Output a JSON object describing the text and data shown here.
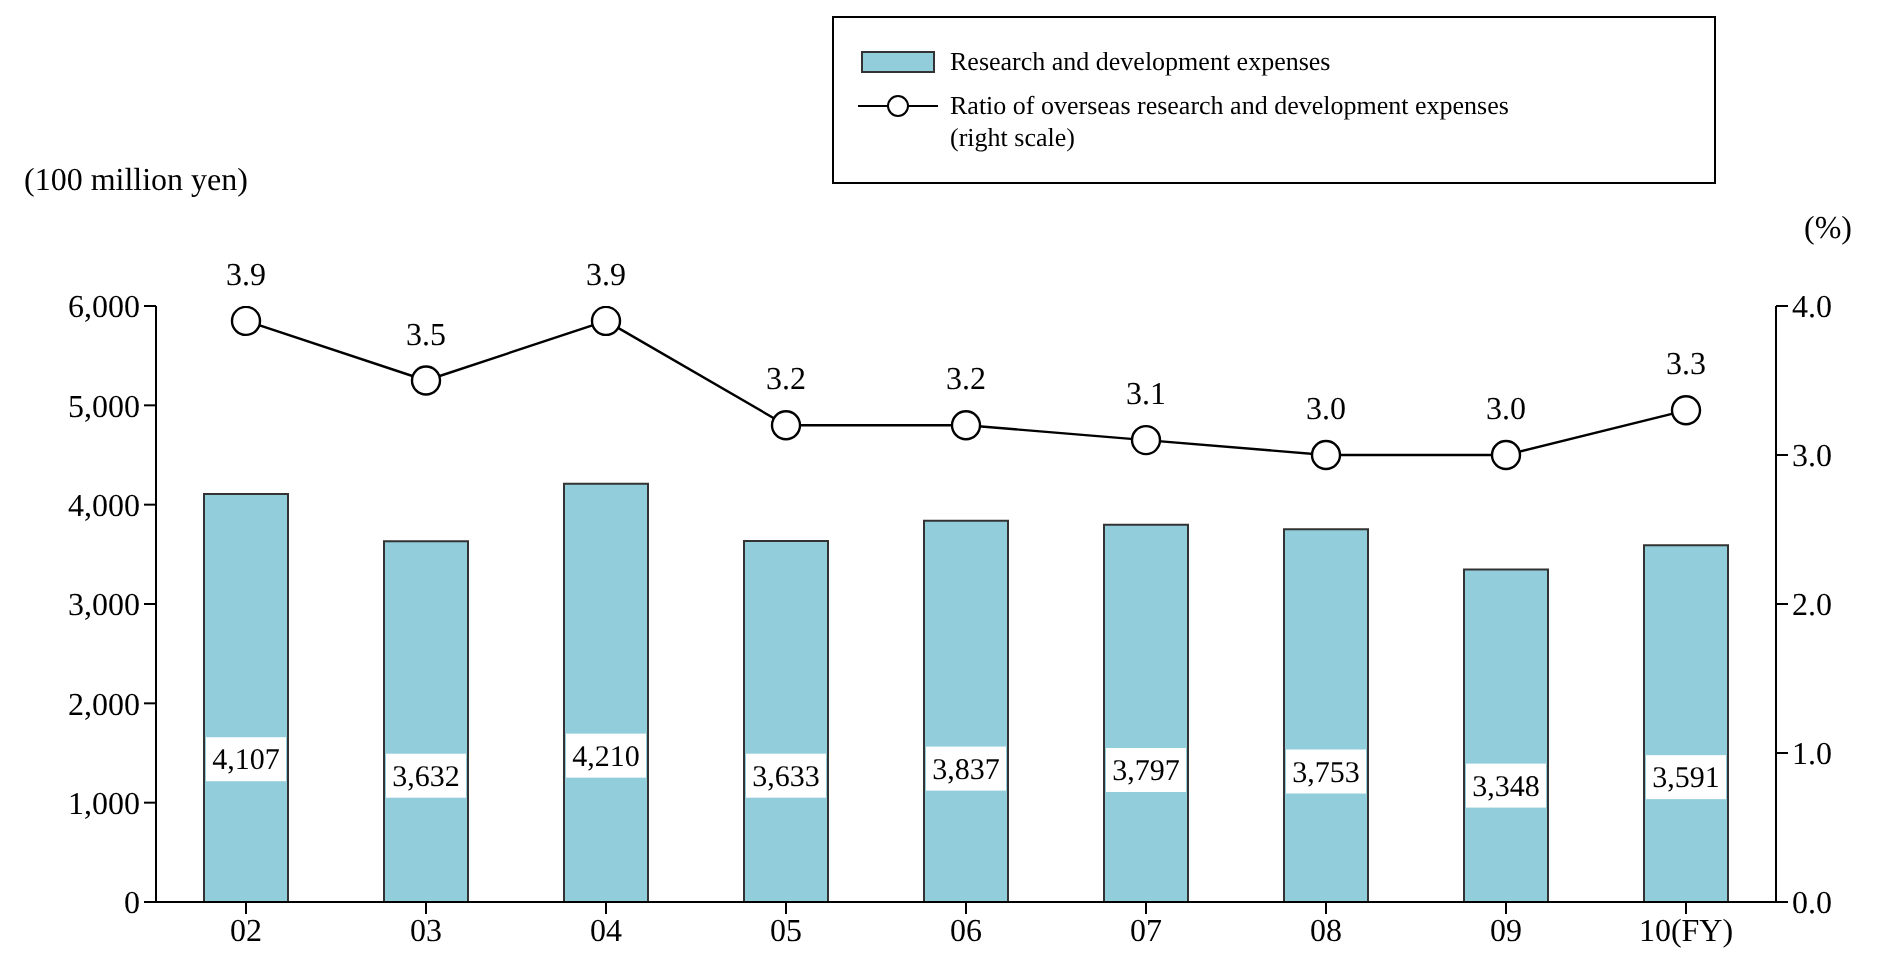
{
  "chart_data": {
    "type": "bar",
    "categories": [
      "02",
      "03",
      "04",
      "05",
      "06",
      "07",
      "08",
      "09",
      "10(FY)"
    ],
    "ylabel": "(100 million yen)",
    "y2label": "(%)",
    "ylim": [
      0,
      6000
    ],
    "yticks": [
      {
        "value": 0,
        "label": "0"
      },
      {
        "value": 1000,
        "label": "1,000"
      },
      {
        "value": 2000,
        "label": "2,000"
      },
      {
        "value": 3000,
        "label": "3,000"
      },
      {
        "value": 4000,
        "label": "4,000"
      },
      {
        "value": 5000,
        "label": "5,000"
      },
      {
        "value": 6000,
        "label": "6,000"
      }
    ],
    "y2lim": [
      0,
      4
    ],
    "y2ticks": [
      {
        "value": 0,
        "label": "0.0"
      },
      {
        "value": 1,
        "label": "1.0"
      },
      {
        "value": 2,
        "label": "2.0"
      },
      {
        "value": 3,
        "label": "3.0"
      },
      {
        "value": 4,
        "label": "4.0"
      }
    ],
    "series": [
      {
        "name": "Research and development expenses",
        "color": "#92cddc",
        "values": [
          4107,
          3632,
          4210,
          3633,
          3837,
          3797,
          3753,
          3348,
          3591
        ],
        "value_labels": [
          "4,107",
          "3,632",
          "4,210",
          "3,633",
          "3,837",
          "3,797",
          "3,753",
          "3,348",
          "3,591"
        ]
      },
      {
        "name": "Ratio of overseas research  and development expenses (right scale)",
        "type": "line",
        "axis": "y2",
        "color": "#000000",
        "marker": "circle",
        "values": [
          3.9,
          3.5,
          3.9,
          3.2,
          3.2,
          3.1,
          3.0,
          3.0,
          3.3
        ],
        "value_labels": [
          "3.9",
          "3.5",
          "3.9",
          "3.2",
          "3.2",
          "3.1",
          "3.0",
          "3.0",
          "3.3"
        ]
      }
    ],
    "legend": "top right",
    "grid": false
  }
}
